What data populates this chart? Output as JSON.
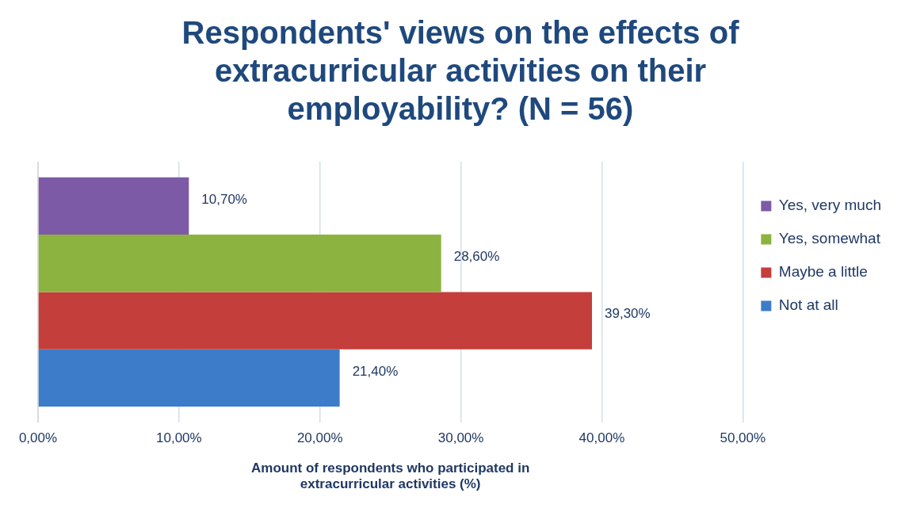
{
  "chart_data": {
    "type": "bar",
    "orientation": "horizontal",
    "title": "Respondents' views on the effects of extracurricular activities on their employability? (N = 56)",
    "xlabel": "Amount of respondents who participated in extracurricular activities (%)",
    "categories": [
      null
    ],
    "series": [
      {
        "name": "Yes, very much",
        "color": "#7d5aa6",
        "values": [
          10.7
        ],
        "value_labels": [
          "10,70%"
        ]
      },
      {
        "name": "Yes, somewhat",
        "color": "#8cb33f",
        "values": [
          28.6
        ],
        "value_labels": [
          "28,60%"
        ]
      },
      {
        "name": "Maybe a little",
        "color": "#c43e3b",
        "values": [
          39.3
        ],
        "value_labels": [
          "39,30%"
        ]
      },
      {
        "name": "Not at all",
        "color": "#3d7cc9",
        "values": [
          21.4
        ],
        "value_labels": [
          "21,40%"
        ]
      }
    ],
    "xlim": [
      0,
      50
    ],
    "xticks": [
      {
        "value": 0,
        "label": "0,00%"
      },
      {
        "value": 10,
        "label": "10,00%"
      },
      {
        "value": 20,
        "label": "20,00%"
      },
      {
        "value": 30,
        "label": "30,00%"
      },
      {
        "value": 40,
        "label": "40,00%"
      },
      {
        "value": 50,
        "label": "50,00%"
      }
    ],
    "grid": "x",
    "legend": "right"
  }
}
